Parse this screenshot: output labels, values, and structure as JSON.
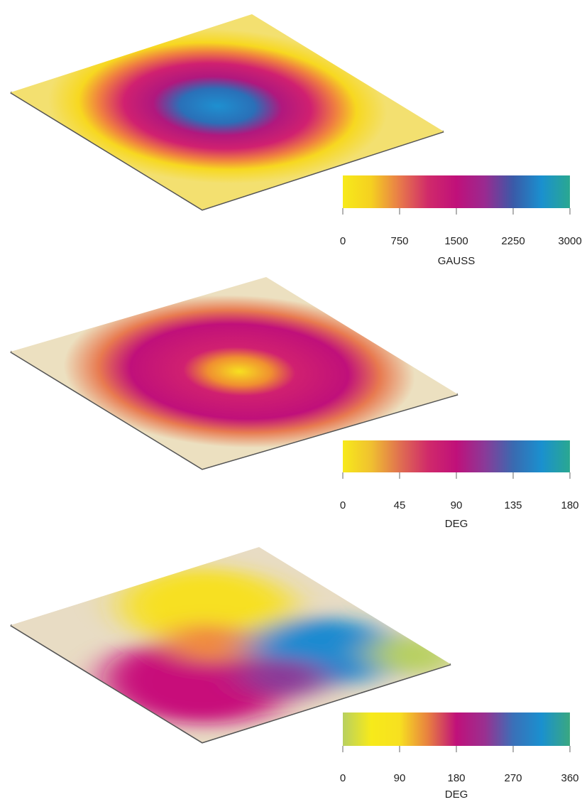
{
  "chart_data": [
    {
      "type": "colorbar",
      "xlabel": "GAUSS",
      "xlim": [
        0,
        3000
      ],
      "xticks": [
        0,
        750,
        1500,
        2250,
        3000
      ],
      "colors": [
        "#f7ea1a",
        "#f5d020",
        "#e87a4a",
        "#d02a6a",
        "#c0107a",
        "#9a2a90",
        "#3a5aa8",
        "#1a90cf",
        "#2aa890"
      ]
    },
    {
      "type": "colorbar",
      "xlabel": "DEG",
      "xlim": [
        0,
        180
      ],
      "xticks": [
        0,
        45,
        90,
        135,
        180
      ],
      "colors": [
        "#f7ea1a",
        "#f0c030",
        "#e07050",
        "#d02a6a",
        "#c0107a",
        "#8a3a98",
        "#3a6ab0",
        "#1a90cf",
        "#2aa890"
      ]
    },
    {
      "type": "colorbar",
      "xlabel": "DEG",
      "xlim": [
        0,
        360
      ],
      "xticks": [
        0,
        90,
        180,
        270,
        360
      ],
      "colors": [
        "#b8d060",
        "#f7ea1a",
        "#f7e020",
        "#e88040",
        "#c0107a",
        "#9a3090",
        "#3a70b8",
        "#1a90cf",
        "#3aa880"
      ]
    }
  ]
}
